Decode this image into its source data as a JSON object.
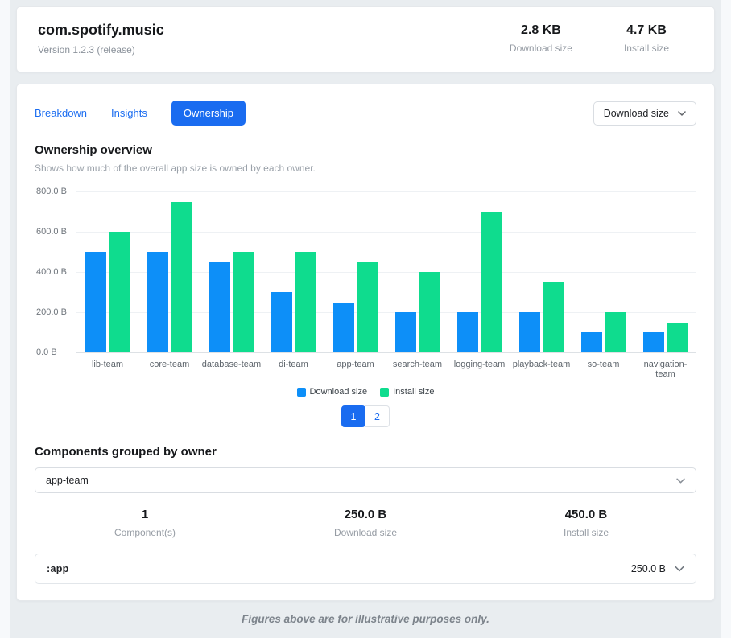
{
  "colors": {
    "download": "#0d8ff8",
    "install": "#0fdc8e",
    "accent": "#1a6cf0"
  },
  "header": {
    "app_id": "com.spotify.music",
    "version": "Version 1.2.3 (release)",
    "stats": [
      {
        "value": "2.8 KB",
        "label": "Download size"
      },
      {
        "value": "4.7 KB",
        "label": "Install size"
      }
    ]
  },
  "toolbar": {
    "tabs": [
      {
        "label": "Breakdown",
        "active": false
      },
      {
        "label": "Insights",
        "active": false
      },
      {
        "label": "Ownership",
        "active": true
      }
    ],
    "size_dropdown": {
      "value": "Download size"
    }
  },
  "ownership": {
    "title": "Ownership overview",
    "subtitle": "Shows how much of the overall app size is owned by each owner."
  },
  "chart_data": {
    "type": "bar",
    "title": "Ownership overview",
    "categories": [
      "lib-team",
      "core-team",
      "database-team",
      "di-team",
      "app-team",
      "search-team",
      "logging-team",
      "playback-team",
      "so-team",
      "navigation-team"
    ],
    "series": [
      {
        "name": "Download size",
        "color": "#0d8ff8",
        "values": [
          500,
          500,
          450,
          300,
          250,
          200,
          200,
          200,
          100,
          100
        ]
      },
      {
        "name": "Install size",
        "color": "#0fdc8e",
        "values": [
          600,
          750,
          500,
          500,
          450,
          400,
          700,
          350,
          200,
          150
        ]
      }
    ],
    "xlabel": "",
    "ylabel": "",
    "ylim": [
      0,
      800
    ],
    "yticks": [
      "800.0 B",
      "600.0 B",
      "400.0 B",
      "200.0 B",
      "0.0 B"
    ],
    "unit": "B",
    "grid": true,
    "legend_position": "bottom"
  },
  "pagination": {
    "pages": [
      {
        "label": "1",
        "active": true
      },
      {
        "label": "2",
        "active": false
      }
    ]
  },
  "components": {
    "title": "Components grouped by owner",
    "owner_select": {
      "value": "app-team"
    },
    "stats": [
      {
        "value": "1",
        "label": "Component(s)"
      },
      {
        "value": "250.0 B",
        "label": "Download size"
      },
      {
        "value": "450.0 B",
        "label": "Install size"
      }
    ],
    "rows": [
      {
        "name": ":app",
        "size": "250.0 B"
      }
    ]
  },
  "footer": {
    "note": "Figures above are for illustrative purposes only."
  }
}
